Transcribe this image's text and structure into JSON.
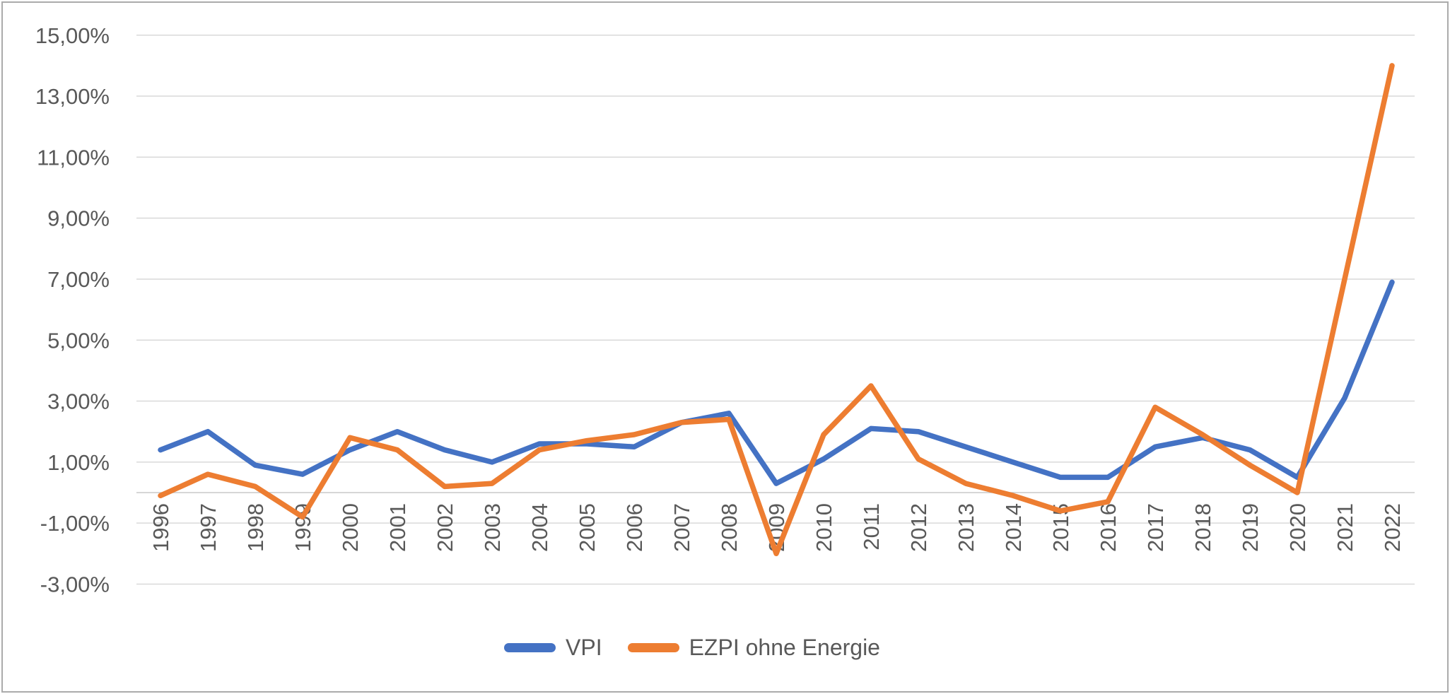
{
  "chart_data": {
    "type": "line",
    "title": "",
    "categories": [
      "1996",
      "1997",
      "1998",
      "1999",
      "2000",
      "2001",
      "2002",
      "2003",
      "2004",
      "2005",
      "2006",
      "2007",
      "2008",
      "2009",
      "2010",
      "2011",
      "2012",
      "2013",
      "2014",
      "2015",
      "2016",
      "2017",
      "2018",
      "2019",
      "2020",
      "2021",
      "2022"
    ],
    "series": [
      {
        "name": "VPI",
        "color": "#4472C4",
        "values": [
          1.4,
          2.0,
          0.9,
          0.6,
          1.4,
          2.0,
          1.4,
          1.0,
          1.6,
          1.6,
          1.5,
          2.3,
          2.6,
          0.3,
          1.1,
          2.1,
          2.0,
          1.5,
          1.0,
          0.5,
          0.5,
          1.5,
          1.8,
          1.4,
          0.5,
          3.1,
          6.9
        ]
      },
      {
        "name": "EZPI ohne Energie",
        "color": "#ED7D31",
        "values": [
          -0.1,
          0.6,
          0.2,
          -0.8,
          1.8,
          1.4,
          0.2,
          0.3,
          1.4,
          1.7,
          1.9,
          2.3,
          2.4,
          -2.0,
          1.9,
          3.5,
          1.1,
          0.3,
          -0.1,
          -0.6,
          -0.3,
          2.8,
          1.9,
          0.9,
          0.0,
          7.0,
          14.0
        ]
      }
    ],
    "y_axis": {
      "ticks": [
        {
          "value": 15,
          "label": "15,00%"
        },
        {
          "value": 13,
          "label": "13,00%"
        },
        {
          "value": 11,
          "label": "11,00%"
        },
        {
          "value": 9,
          "label": "9,00%"
        },
        {
          "value": 7,
          "label": "7,00%"
        },
        {
          "value": 5,
          "label": "5,00%"
        },
        {
          "value": 3,
          "label": "3,00%"
        },
        {
          "value": 1,
          "label": "1,00%"
        },
        {
          "value": -1,
          "label": "-1,00%"
        },
        {
          "value": -3,
          "label": "-3,00%"
        }
      ]
    },
    "ylim": [
      -3,
      15
    ],
    "grid": true,
    "legend_position": "bottom-center",
    "colors": {
      "gridline": "#D9D9D9",
      "axis_line": "#C8C8C8",
      "tick_text": "#595959",
      "frame_border": "#ABABAB",
      "background": "#FFFFFF"
    }
  }
}
